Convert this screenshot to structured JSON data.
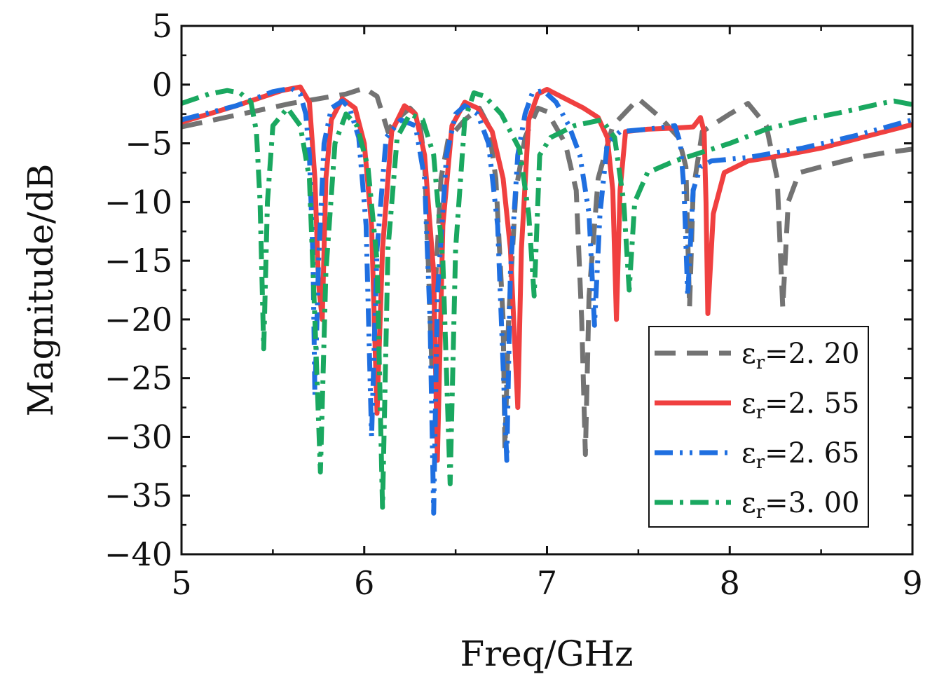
{
  "chart_data": {
    "type": "line",
    "title": "",
    "xlabel": "Freq/GHz",
    "ylabel": "Magnitude/dB",
    "xlim": [
      5,
      9
    ],
    "ylim": [
      -40,
      5
    ],
    "xticks": [
      5,
      6,
      7,
      8,
      9
    ],
    "xtick_labels": [
      "5",
      "6",
      "7",
      "8",
      "9"
    ],
    "yticks": [
      5,
      0,
      -5,
      -10,
      -15,
      -20,
      -25,
      -30,
      -35,
      -40
    ],
    "ytick_labels": [
      "5",
      "0",
      "−5",
      "−10",
      "−15",
      "−20",
      "−25",
      "−30",
      "−35",
      "−40"
    ],
    "grid": false,
    "legend_position": "bottom-right",
    "series": [
      {
        "name": "εr=2. 20",
        "legend_base": "ε",
        "legend_sub": "r",
        "legend_value": "=2. 20",
        "color": "#737373",
        "dash": "dashed",
        "points": [
          [
            5.0,
            -3.6
          ],
          [
            5.3,
            -2.6
          ],
          [
            5.6,
            -1.6
          ],
          [
            5.75,
            -1.2
          ],
          [
            5.9,
            -0.8
          ],
          [
            6.0,
            -0.3
          ],
          [
            6.07,
            -1.0
          ],
          [
            6.1,
            -2.5
          ],
          [
            6.13,
            -4.0
          ],
          [
            6.16,
            -3.2
          ],
          [
            6.25,
            -2.0
          ],
          [
            6.3,
            -2.8
          ],
          [
            6.33,
            -6.5
          ],
          [
            6.35,
            -15.0
          ],
          [
            6.37,
            -24.0
          ],
          [
            6.39,
            -17.0
          ],
          [
            6.42,
            -8.0
          ],
          [
            6.46,
            -4.6
          ],
          [
            6.55,
            -3.0
          ],
          [
            6.63,
            -2.0
          ],
          [
            6.68,
            -3.5
          ],
          [
            6.72,
            -8.0
          ],
          [
            6.76,
            -20.0
          ],
          [
            6.77,
            -31.0
          ],
          [
            6.79,
            -20.0
          ],
          [
            6.83,
            -9.0
          ],
          [
            6.88,
            -4.5
          ],
          [
            6.95,
            -2.0
          ],
          [
            7.0,
            -2.3
          ],
          [
            7.1,
            -5.0
          ],
          [
            7.16,
            -9.0
          ],
          [
            7.19,
            -20.0
          ],
          [
            7.21,
            -31.5
          ],
          [
            7.23,
            -18.0
          ],
          [
            7.28,
            -8.0
          ],
          [
            7.36,
            -3.5
          ],
          [
            7.5,
            -1.2
          ],
          [
            7.62,
            -2.8
          ],
          [
            7.72,
            -4.5
          ],
          [
            7.76,
            -7.0
          ],
          [
            7.78,
            -19.0
          ],
          [
            7.8,
            -9.0
          ],
          [
            7.85,
            -4.0
          ],
          [
            8.0,
            -2.5
          ],
          [
            8.1,
            -1.6
          ],
          [
            8.2,
            -3.5
          ],
          [
            8.26,
            -8.0
          ],
          [
            8.29,
            -19.0
          ],
          [
            8.32,
            -10.0
          ],
          [
            8.38,
            -7.5
          ],
          [
            8.5,
            -7.0
          ],
          [
            8.7,
            -6.2
          ],
          [
            8.85,
            -5.8
          ],
          [
            9.0,
            -5.5
          ]
        ]
      },
      {
        "name": "εr=2. 55",
        "legend_base": "ε",
        "legend_sub": "r",
        "legend_value": "=2. 55",
        "color": "#f04040",
        "dash": "solid",
        "points": [
          [
            5.0,
            -3.2
          ],
          [
            5.3,
            -1.8
          ],
          [
            5.55,
            -0.5
          ],
          [
            5.65,
            -0.2
          ],
          [
            5.7,
            -1.5
          ],
          [
            5.73,
            -8.0
          ],
          [
            5.75,
            -17.0
          ],
          [
            5.77,
            -20.0
          ],
          [
            5.79,
            -8.0
          ],
          [
            5.82,
            -3.0
          ],
          [
            5.88,
            -1.2
          ],
          [
            5.95,
            -2.0
          ],
          [
            6.0,
            -5.0
          ],
          [
            6.04,
            -12.0
          ],
          [
            6.07,
            -28.0
          ],
          [
            6.1,
            -14.0
          ],
          [
            6.15,
            -4.0
          ],
          [
            6.22,
            -1.8
          ],
          [
            6.28,
            -2.5
          ],
          [
            6.33,
            -6.0
          ],
          [
            6.38,
            -16.0
          ],
          [
            6.4,
            -32.0
          ],
          [
            6.43,
            -12.0
          ],
          [
            6.48,
            -3.5
          ],
          [
            6.55,
            -1.5
          ],
          [
            6.62,
            -2.0
          ],
          [
            6.7,
            -4.0
          ],
          [
            6.76,
            -8.0
          ],
          [
            6.8,
            -14.0
          ],
          [
            6.84,
            -27.5
          ],
          [
            6.86,
            -14.0
          ],
          [
            6.9,
            -3.0
          ],
          [
            6.95,
            -0.8
          ],
          [
            7.0,
            -0.4
          ],
          [
            7.1,
            -1.2
          ],
          [
            7.2,
            -2.0
          ],
          [
            7.28,
            -2.8
          ],
          [
            7.33,
            -4.5
          ],
          [
            7.36,
            -9.0
          ],
          [
            7.38,
            -20.0
          ],
          [
            7.4,
            -9.0
          ],
          [
            7.43,
            -4.0
          ],
          [
            7.55,
            -3.8
          ],
          [
            7.7,
            -3.7
          ],
          [
            7.8,
            -3.6
          ],
          [
            7.84,
            -2.8
          ],
          [
            7.86,
            -4.0
          ],
          [
            7.87,
            -10.0
          ],
          [
            7.88,
            -19.5
          ],
          [
            7.91,
            -11.0
          ],
          [
            7.97,
            -7.5
          ],
          [
            8.1,
            -6.5
          ],
          [
            8.3,
            -6.0
          ],
          [
            8.5,
            -5.4
          ],
          [
            8.7,
            -4.6
          ],
          [
            8.9,
            -3.8
          ],
          [
            9.0,
            -3.4
          ]
        ]
      },
      {
        "name": "εr=2. 65",
        "legend_base": "ε",
        "legend_sub": "r",
        "legend_value": "=2. 65",
        "color": "#1f6fe0",
        "dash": "dash-dot-dot",
        "points": [
          [
            5.0,
            -3.0
          ],
          [
            5.3,
            -1.8
          ],
          [
            5.5,
            -0.6
          ],
          [
            5.6,
            -0.3
          ],
          [
            5.65,
            -0.8
          ],
          [
            5.68,
            -2.5
          ],
          [
            5.7,
            -6.0
          ],
          [
            5.72,
            -15.0
          ],
          [
            5.73,
            -26.5
          ],
          [
            5.75,
            -15.0
          ],
          [
            5.78,
            -5.0
          ],
          [
            5.82,
            -2.0
          ],
          [
            5.88,
            -1.4
          ],
          [
            5.92,
            -2.0
          ],
          [
            5.97,
            -4.5
          ],
          [
            6.01,
            -12.0
          ],
          [
            6.04,
            -30.0
          ],
          [
            6.07,
            -14.0
          ],
          [
            6.12,
            -4.5
          ],
          [
            6.2,
            -3.0
          ],
          [
            6.28,
            -3.5
          ],
          [
            6.33,
            -8.0
          ],
          [
            6.36,
            -20.0
          ],
          [
            6.38,
            -36.5
          ],
          [
            6.4,
            -18.0
          ],
          [
            6.45,
            -6.0
          ],
          [
            6.5,
            -2.5
          ],
          [
            6.55,
            -1.8
          ],
          [
            6.62,
            -2.5
          ],
          [
            6.68,
            -5.0
          ],
          [
            6.73,
            -12.0
          ],
          [
            6.76,
            -24.0
          ],
          [
            6.78,
            -32.0
          ],
          [
            6.8,
            -16.0
          ],
          [
            6.84,
            -6.0
          ],
          [
            6.88,
            -2.5
          ],
          [
            6.92,
            -0.7
          ],
          [
            6.98,
            -0.5
          ],
          [
            7.05,
            -1.5
          ],
          [
            7.12,
            -3.5
          ],
          [
            7.18,
            -6.0
          ],
          [
            7.23,
            -11.0
          ],
          [
            7.26,
            -20.5
          ],
          [
            7.29,
            -11.0
          ],
          [
            7.33,
            -5.0
          ],
          [
            7.4,
            -4.0
          ],
          [
            7.55,
            -3.8
          ],
          [
            7.7,
            -3.5
          ],
          [
            7.73,
            -5.0
          ],
          [
            7.75,
            -9.0
          ],
          [
            7.77,
            -18.0
          ],
          [
            7.8,
            -9.0
          ],
          [
            7.84,
            -7.0
          ],
          [
            7.9,
            -6.5
          ],
          [
            8.1,
            -6.2
          ],
          [
            8.4,
            -5.4
          ],
          [
            8.7,
            -4.3
          ],
          [
            9.0,
            -3.0
          ]
        ]
      },
      {
        "name": "εr=3. 00",
        "legend_base": "ε",
        "legend_sub": "r",
        "legend_value": "=3. 00",
        "color": "#1aa860",
        "dash": "dash-dot",
        "points": [
          [
            5.0,
            -1.6
          ],
          [
            5.15,
            -0.8
          ],
          [
            5.25,
            -0.5
          ],
          [
            5.32,
            -0.7
          ],
          [
            5.38,
            -1.5
          ],
          [
            5.41,
            -4.0
          ],
          [
            5.43,
            -10.0
          ],
          [
            5.45,
            -22.5
          ],
          [
            5.47,
            -10.0
          ],
          [
            5.5,
            -3.5
          ],
          [
            5.58,
            -2.0
          ],
          [
            5.65,
            -3.5
          ],
          [
            5.7,
            -8.0
          ],
          [
            5.73,
            -20.0
          ],
          [
            5.76,
            -33.0
          ],
          [
            5.79,
            -16.0
          ],
          [
            5.84,
            -5.0
          ],
          [
            5.9,
            -2.5
          ],
          [
            5.96,
            -3.5
          ],
          [
            6.02,
            -7.0
          ],
          [
            6.07,
            -15.0
          ],
          [
            6.1,
            -36.0
          ],
          [
            6.13,
            -14.0
          ],
          [
            6.18,
            -4.5
          ],
          [
            6.25,
            -2.5
          ],
          [
            6.32,
            -3.0
          ],
          [
            6.38,
            -6.0
          ],
          [
            6.43,
            -15.0
          ],
          [
            6.47,
            -34.0
          ],
          [
            6.5,
            -14.0
          ],
          [
            6.55,
            -3.0
          ],
          [
            6.6,
            -0.7
          ],
          [
            6.66,
            -1.0
          ],
          [
            6.75,
            -2.5
          ],
          [
            6.85,
            -5.5
          ],
          [
            6.9,
            -11.0
          ],
          [
            6.93,
            -18.0
          ],
          [
            6.96,
            -6.0
          ],
          [
            7.02,
            -4.5
          ],
          [
            7.15,
            -3.5
          ],
          [
            7.3,
            -3.0
          ],
          [
            7.37,
            -4.5
          ],
          [
            7.42,
            -10.0
          ],
          [
            7.45,
            -17.5
          ],
          [
            7.48,
            -10.0
          ],
          [
            7.55,
            -7.5
          ],
          [
            7.7,
            -6.5
          ],
          [
            7.8,
            -6.0
          ],
          [
            8.0,
            -5.0
          ],
          [
            8.2,
            -3.8
          ],
          [
            8.4,
            -3.0
          ],
          [
            8.6,
            -2.4
          ],
          [
            8.8,
            -1.7
          ],
          [
            8.9,
            -1.4
          ],
          [
            9.0,
            -1.7
          ]
        ]
      }
    ]
  }
}
